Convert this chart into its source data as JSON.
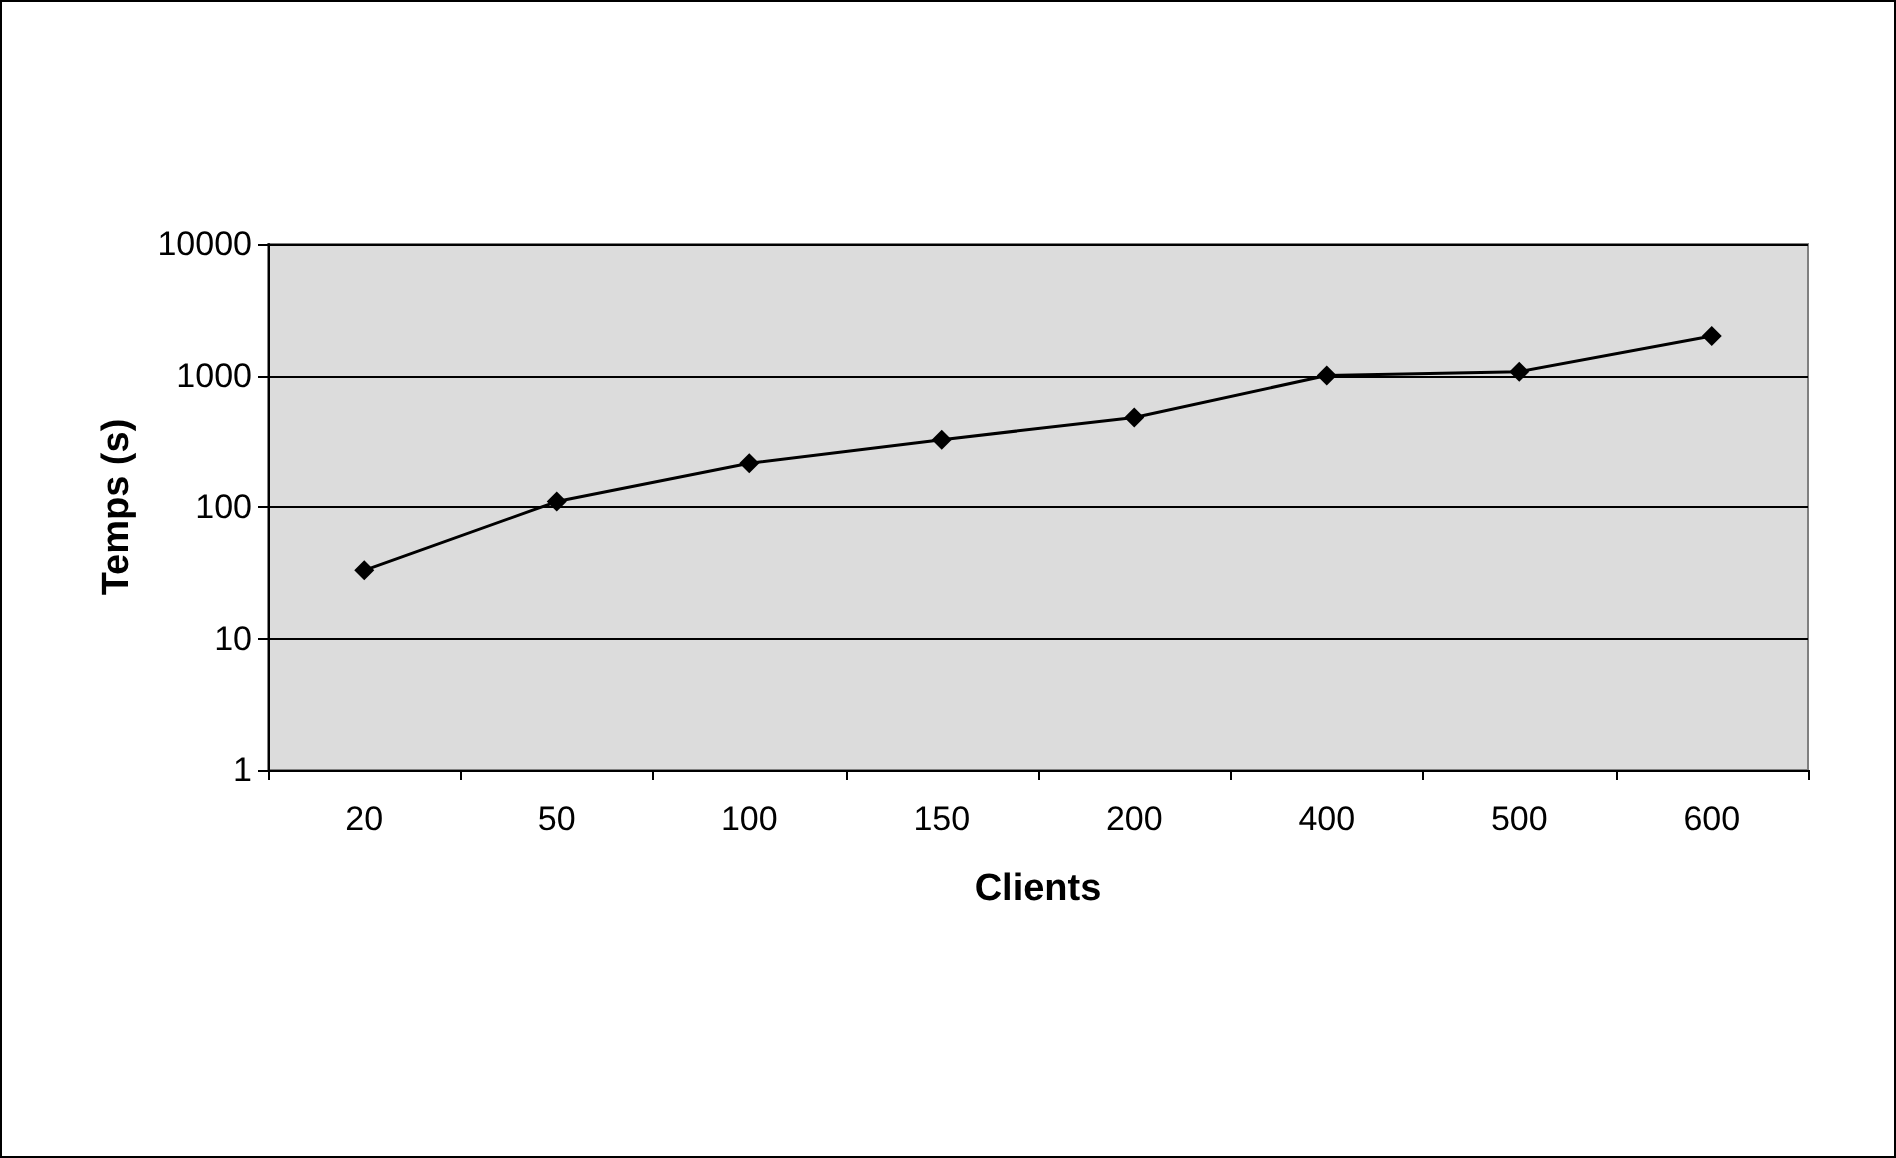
{
  "chart_data": {
    "type": "line",
    "xlabel": "Clients",
    "ylabel": "Temps (s)",
    "categories": [
      "20",
      "50",
      "100",
      "150",
      "200",
      "400",
      "500",
      "600"
    ],
    "series": [
      {
        "color": "#000000",
        "values": [
          33,
          110,
          215,
          325,
          480,
          1000,
          1070,
          2000
        ]
      }
    ],
    "log": true,
    "ylim": [
      1,
      10000
    ],
    "yticks": [
      1,
      10,
      100,
      1000,
      10000
    ],
    "grid": "y",
    "marker": "diamond",
    "line_style": "solid"
  }
}
